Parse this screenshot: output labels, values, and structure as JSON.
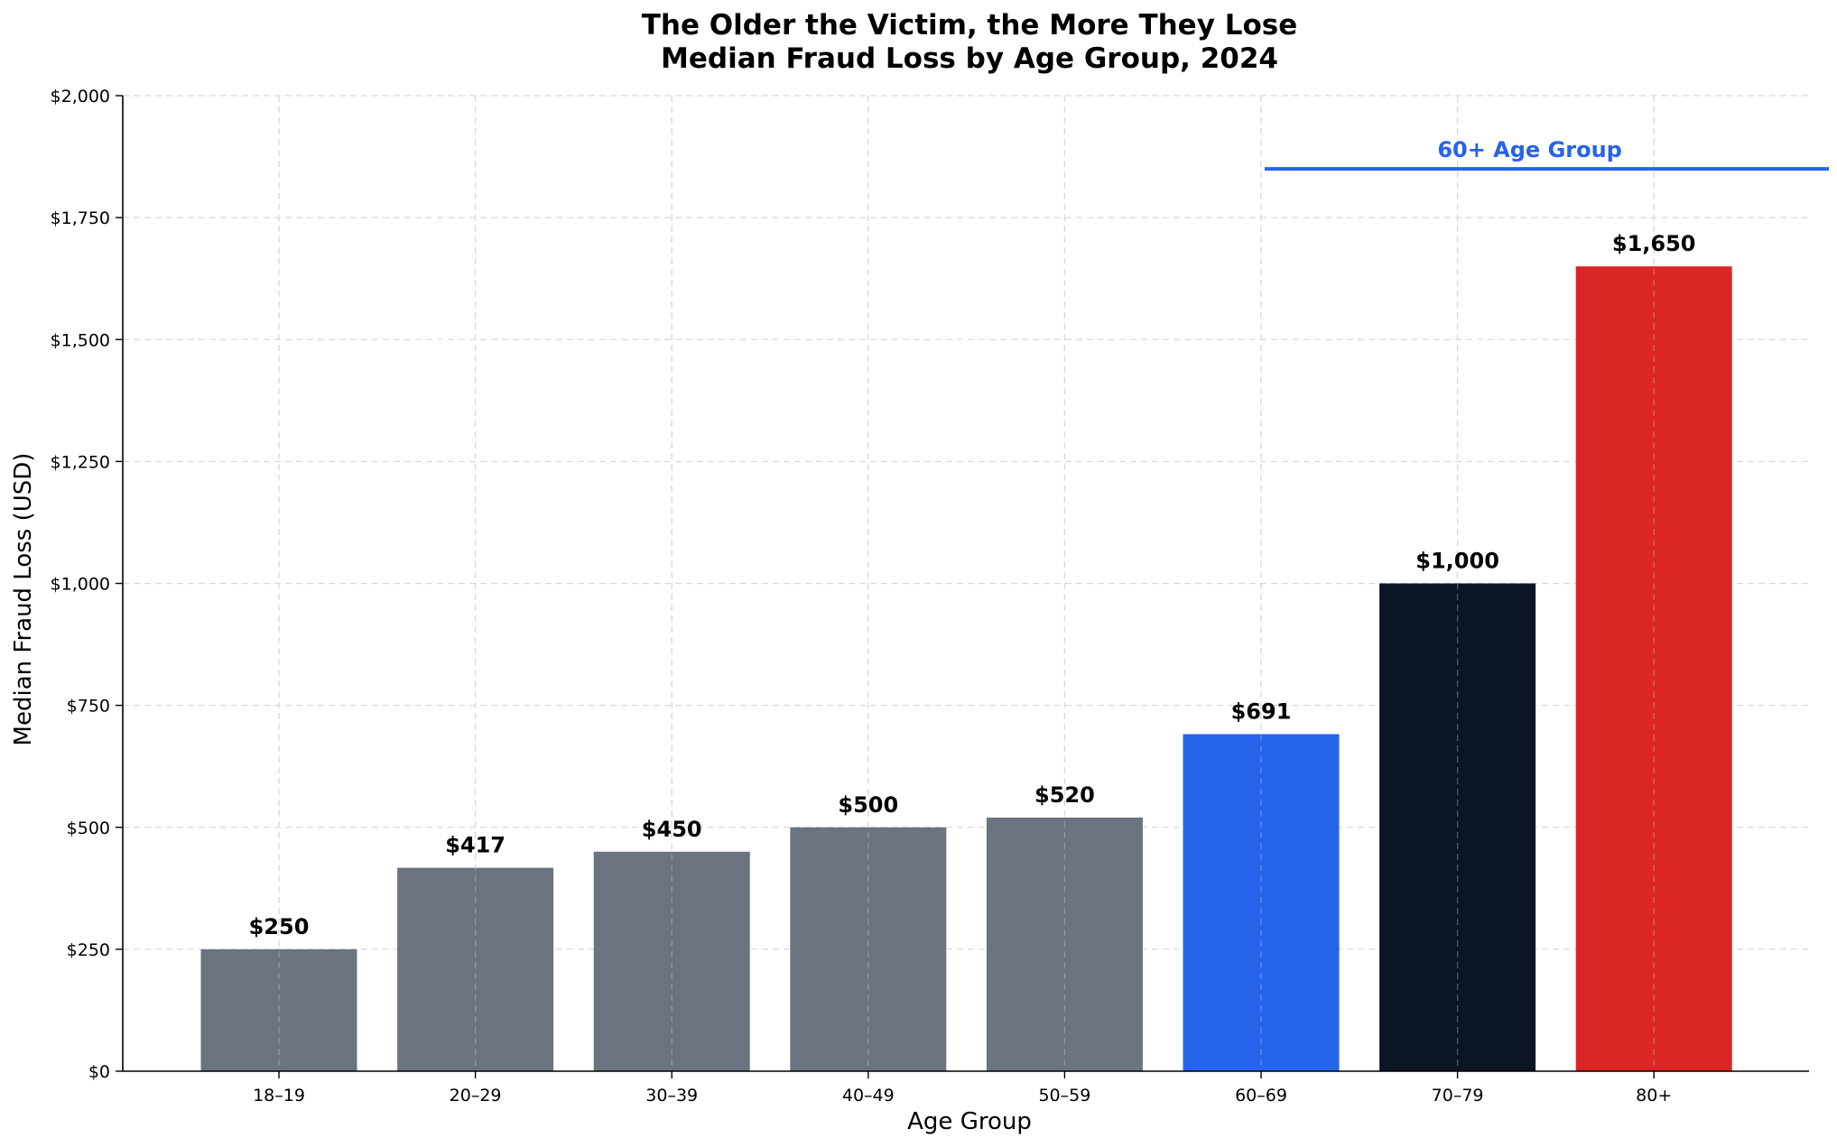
{
  "chart_data": {
    "type": "bar",
    "title_line1": "The Older the Victim, the More They Lose",
    "title_line2": "Median Fraud Loss by Age Group, 2024",
    "xlabel": "Age Group",
    "ylabel": "Median Fraud Loss (USD)",
    "ylim": [
      0,
      2000
    ],
    "yticks": [
      0,
      250,
      500,
      750,
      1000,
      1250,
      1500,
      1750,
      2000
    ],
    "ytick_labels": [
      "$0",
      "$250",
      "$500",
      "$750",
      "$1,000",
      "$1,250",
      "$1,500",
      "$1,750",
      "$2,000"
    ],
    "categories": [
      "18–19",
      "20–29",
      "30–39",
      "40–49",
      "50–59",
      "60–69",
      "70–79",
      "80+"
    ],
    "values": [
      250,
      417,
      450,
      500,
      520,
      691,
      1000,
      1650
    ],
    "value_labels": [
      "$250",
      "$417",
      "$450",
      "$500",
      "$520",
      "$691",
      "$1,000",
      "$1,650"
    ],
    "colors": [
      "#6b7280",
      "#6b7280",
      "#6b7280",
      "#6b7280",
      "#6b7280",
      "#2563eb",
      "#0b1526",
      "#dc2626"
    ],
    "grid": true,
    "annotation": {
      "label": "60+ Age Group",
      "y_value": 1850,
      "from_category": "60–69",
      "color": "#2563eb"
    }
  }
}
